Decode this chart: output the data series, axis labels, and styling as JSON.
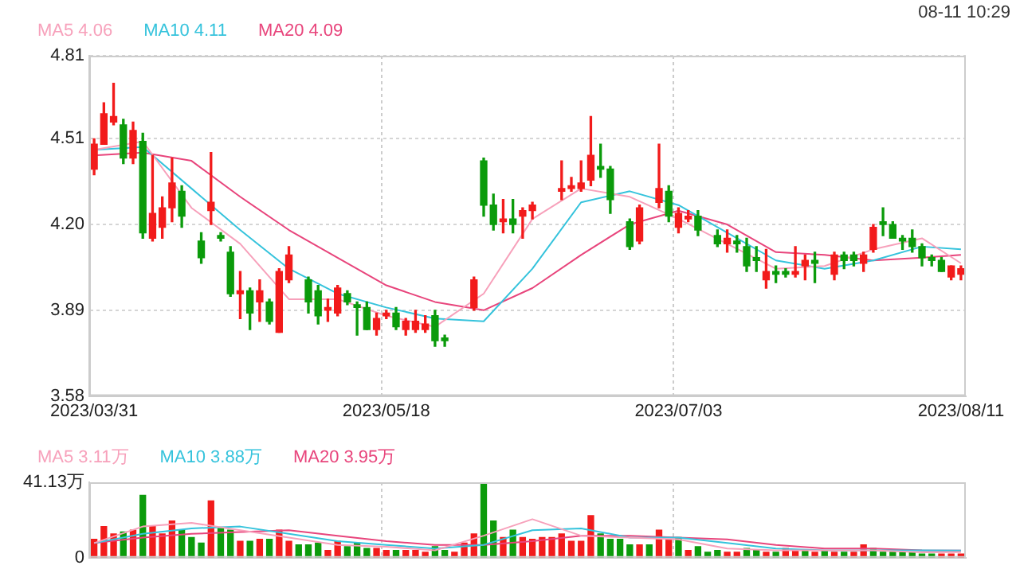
{
  "chart_data": [
    {
      "type": "candlestick",
      "categories": [
        "2023/03/31",
        null,
        null,
        null,
        null,
        null,
        null,
        null,
        null,
        null,
        null,
        null,
        null,
        null,
        null,
        null,
        null,
        null,
        null,
        null,
        null,
        null,
        null,
        null,
        null,
        null,
        null,
        null,
        null,
        null,
        "2023/05/18",
        null,
        null,
        null,
        null,
        null,
        null,
        null,
        null,
        null,
        null,
        null,
        null,
        null,
        null,
        null,
        null,
        null,
        null,
        null,
        null,
        null,
        null,
        null,
        null,
        null,
        null,
        null,
        null,
        null,
        "2023/07/03",
        null,
        null,
        null,
        null,
        null,
        null,
        null,
        null,
        null,
        null,
        null,
        null,
        null,
        null,
        null,
        null,
        null,
        null,
        null,
        null,
        null,
        null,
        null,
        null,
        null,
        null,
        null,
        null,
        "2023/08/11"
      ],
      "ohlc": [
        [
          4.4,
          4.51,
          4.38,
          4.49
        ],
        [
          4.49,
          4.64,
          4.49,
          4.6
        ],
        [
          4.57,
          4.71,
          4.56,
          4.59
        ],
        [
          4.56,
          4.58,
          4.42,
          4.44
        ],
        [
          4.44,
          4.57,
          4.42,
          4.54
        ],
        [
          4.5,
          4.53,
          4.15,
          4.17
        ],
        [
          4.15,
          4.45,
          4.14,
          4.24
        ],
        [
          4.19,
          4.3,
          4.15,
          4.26
        ],
        [
          4.26,
          4.44,
          4.21,
          4.35
        ],
        [
          4.32,
          4.34,
          4.19,
          4.23
        ],
        null,
        [
          4.14,
          4.17,
          4.06,
          4.08
        ],
        [
          4.25,
          4.46,
          4.2,
          4.28
        ],
        [
          4.16,
          4.17,
          4.14,
          4.15
        ],
        [
          4.1,
          4.12,
          3.94,
          3.95
        ],
        [
          3.95,
          4.03,
          3.86,
          3.96
        ],
        [
          3.96,
          3.97,
          3.82,
          3.88
        ],
        [
          3.92,
          4.0,
          3.85,
          3.96
        ],
        [
          3.92,
          3.93,
          3.84,
          3.85
        ],
        [
          3.81,
          4.04,
          3.81,
          4.03
        ],
        [
          4.0,
          4.12,
          3.99,
          4.09
        ],
        null,
        [
          4.0,
          4.01,
          3.88,
          3.92
        ],
        [
          3.96,
          3.98,
          3.84,
          3.87
        ],
        [
          3.89,
          3.93,
          3.85,
          3.9
        ],
        [
          3.88,
          3.98,
          3.87,
          3.97
        ],
        [
          3.95,
          3.96,
          3.91,
          3.92
        ],
        [
          3.91,
          3.92,
          3.8,
          3.9
        ],
        [
          3.9,
          3.92,
          3.82,
          3.82
        ],
        [
          3.82,
          3.88,
          3.8,
          3.86
        ],
        [
          3.87,
          3.89,
          3.86,
          3.88
        ],
        [
          3.88,
          3.9,
          3.82,
          3.83
        ],
        [
          3.82,
          3.86,
          3.8,
          3.85
        ],
        [
          3.82,
          3.89,
          3.81,
          3.85
        ],
        [
          3.82,
          3.87,
          3.81,
          3.84
        ],
        [
          3.87,
          3.89,
          3.76,
          3.78
        ],
        [
          3.79,
          3.8,
          3.76,
          3.78
        ],
        null,
        null,
        [
          3.9,
          4.01,
          3.89,
          4.0
        ],
        [
          4.43,
          4.44,
          4.23,
          4.27
        ],
        [
          4.27,
          4.31,
          4.18,
          4.2
        ],
        [
          4.21,
          4.29,
          4.17,
          4.22
        ],
        [
          4.22,
          4.29,
          4.17,
          4.2
        ],
        [
          4.23,
          4.26,
          4.15,
          4.25
        ],
        [
          4.25,
          4.28,
          4.22,
          4.27
        ],
        null,
        null,
        [
          4.32,
          4.43,
          4.29,
          4.33
        ],
        [
          4.33,
          4.37,
          4.32,
          4.34
        ],
        [
          4.33,
          4.43,
          4.32,
          4.35
        ],
        [
          4.36,
          4.59,
          4.34,
          4.45
        ],
        [
          4.41,
          4.49,
          4.37,
          4.4
        ],
        [
          4.4,
          4.41,
          4.24,
          4.29
        ],
        null,
        [
          4.21,
          4.22,
          4.11,
          4.12
        ],
        [
          4.14,
          4.27,
          4.13,
          4.26
        ],
        null,
        [
          4.28,
          4.49,
          4.26,
          4.33
        ],
        [
          4.32,
          4.34,
          4.21,
          4.23
        ],
        [
          4.19,
          4.26,
          4.17,
          4.24
        ],
        [
          4.22,
          4.25,
          4.21,
          4.23
        ],
        [
          4.23,
          4.25,
          4.16,
          4.18
        ],
        null,
        [
          4.16,
          4.18,
          4.12,
          4.13
        ],
        [
          4.13,
          4.18,
          4.1,
          4.15
        ],
        [
          4.14,
          4.16,
          4.1,
          4.13
        ],
        [
          4.12,
          4.15,
          4.03,
          4.05
        ],
        [
          4.08,
          4.12,
          4.03,
          4.07
        ],
        [
          4.0,
          4.11,
          3.97,
          4.03
        ],
        [
          4.03,
          4.05,
          3.99,
          4.02
        ],
        [
          4.03,
          4.04,
          4.01,
          4.02
        ],
        [
          4.02,
          4.12,
          4.01,
          4.03
        ],
        [
          4.05,
          4.09,
          4.0,
          4.07
        ],
        [
          4.07,
          4.1,
          3.99,
          4.06
        ],
        null,
        [
          4.02,
          4.1,
          4.0,
          4.09
        ],
        [
          4.09,
          4.1,
          4.04,
          4.07
        ],
        [
          4.09,
          4.1,
          4.05,
          4.07
        ],
        [
          4.06,
          4.1,
          4.03,
          4.09
        ],
        [
          4.11,
          4.2,
          4.1,
          4.19
        ],
        [
          4.21,
          4.26,
          4.16,
          4.2
        ],
        [
          4.2,
          4.21,
          4.15,
          4.15
        ],
        [
          4.15,
          4.16,
          4.11,
          4.14
        ],
        [
          4.15,
          4.18,
          4.1,
          4.12
        ],
        [
          4.12,
          4.13,
          4.05,
          4.08
        ],
        [
          4.08,
          4.09,
          4.05,
          4.07
        ],
        [
          4.07,
          4.08,
          4.03,
          4.03
        ],
        [
          4.01,
          4.05,
          4.0,
          4.05
        ],
        [
          4.02,
          4.05,
          4.0,
          4.04
        ]
      ],
      "colors": [
        "#f21b1b",
        "#f21b1b",
        "#f21b1b",
        "#0b9b0b",
        "#f21b1b",
        "#0b9b0b",
        "#f21b1b",
        "#f21b1b",
        "#f21b1b",
        "#0b9b0b",
        null,
        "#0b9b0b",
        "#f21b1b",
        "#0b9b0b",
        "#0b9b0b",
        "#f21b1b",
        "#0b9b0b",
        "#f21b1b",
        "#0b9b0b",
        "#f21b1b",
        "#f21b1b",
        null,
        "#0b9b0b",
        "#0b9b0b",
        "#f21b1b",
        "#f21b1b",
        "#0b9b0b",
        "#0b9b0b",
        "#0b9b0b",
        "#f21b1b",
        "#f21b1b",
        "#0b9b0b",
        "#f21b1b",
        "#f21b1b",
        "#f21b1b",
        "#0b9b0b",
        "#0b9b0b",
        null,
        null,
        "#f21b1b",
        "#0b9b0b",
        "#0b9b0b",
        "#f21b1b",
        "#0b9b0b",
        "#f21b1b",
        "#f21b1b",
        null,
        null,
        "#f21b1b",
        "#f21b1b",
        "#f21b1b",
        "#f21b1b",
        "#0b9b0b",
        "#0b9b0b",
        null,
        "#0b9b0b",
        "#f21b1b",
        null,
        "#f21b1b",
        "#0b9b0b",
        "#f21b1b",
        "#f21b1b",
        "#0b9b0b",
        null,
        "#0b9b0b",
        "#f21b1b",
        "#0b9b0b",
        "#0b9b0b",
        "#0b9b0b",
        "#f21b1b",
        "#0b9b0b",
        "#0b9b0b",
        "#f21b1b",
        "#f21b1b",
        "#0b9b0b",
        null,
        "#f21b1b",
        "#0b9b0b",
        "#0b9b0b",
        "#f21b1b",
        "#f21b1b",
        "#0b9b0b",
        "#0b9b0b",
        "#0b9b0b",
        "#0b9b0b",
        "#0b9b0b",
        "#0b9b0b",
        "#0b9b0b",
        "#f21b1b",
        "#f21b1b"
      ],
      "series": [
        {
          "type": "line",
          "name": "MA5 4.06",
          "color": "#f7a1bb",
          "values": [
            4.47,
            null,
            null,
            null,
            null,
            4.5,
            null,
            null,
            null,
            null,
            4.26,
            null,
            null,
            null,
            null,
            4.13,
            null,
            null,
            null,
            null,
            3.93,
            null,
            null,
            null,
            null,
            3.93,
            null,
            null,
            null,
            null,
            3.87,
            null,
            null,
            null,
            null,
            3.83,
            null,
            null,
            null,
            null,
            3.95,
            null,
            null,
            null,
            null,
            4.22,
            null,
            null,
            null,
            null,
            4.33,
            null,
            null,
            null,
            null,
            4.3,
            null,
            null,
            null,
            null,
            4.22,
            null,
            null,
            null,
            null,
            4.13,
            null,
            null,
            null,
            null,
            4.04,
            null,
            null,
            null,
            null,
            4.05,
            null,
            null,
            null,
            null,
            4.11,
            null,
            null,
            null,
            null,
            4.15,
            null,
            null,
            null,
            4.06
          ]
        },
        {
          "type": "line",
          "name": "MA10 4.11",
          "color": "#35c3dc",
          "values": [
            4.47,
            null,
            null,
            null,
            null,
            4.48,
            null,
            null,
            null,
            null,
            4.33,
            null,
            null,
            null,
            null,
            4.18,
            null,
            null,
            null,
            null,
            4.04,
            null,
            null,
            null,
            null,
            3.95,
            null,
            null,
            null,
            null,
            3.9,
            null,
            null,
            null,
            null,
            3.86,
            null,
            null,
            null,
            null,
            3.85,
            null,
            null,
            null,
            null,
            4.04,
            null,
            null,
            null,
            null,
            4.28,
            null,
            null,
            null,
            null,
            4.32,
            null,
            null,
            null,
            null,
            4.27,
            null,
            null,
            null,
            null,
            4.17,
            null,
            null,
            null,
            null,
            4.07,
            null,
            null,
            null,
            null,
            4.04,
            null,
            null,
            null,
            null,
            4.07,
            null,
            null,
            null,
            null,
            4.12,
            null,
            null,
            null,
            4.11
          ]
        },
        {
          "type": "line",
          "name": "MA20 4.09",
          "color": "#e8457c",
          "values": [
            4.45,
            null,
            null,
            null,
            null,
            4.46,
            null,
            null,
            null,
            null,
            4.43,
            null,
            null,
            null,
            null,
            4.3,
            null,
            null,
            null,
            null,
            4.18,
            null,
            null,
            null,
            null,
            4.08,
            null,
            null,
            null,
            null,
            3.98,
            null,
            null,
            null,
            null,
            3.92,
            null,
            null,
            null,
            null,
            3.89,
            null,
            null,
            null,
            null,
            3.97,
            null,
            null,
            null,
            null,
            4.09,
            null,
            null,
            null,
            null,
            4.2,
            null,
            null,
            null,
            null,
            4.25,
            null,
            null,
            null,
            null,
            4.2,
            null,
            null,
            null,
            null,
            4.1,
            null,
            null,
            null,
            null,
            4.09,
            null,
            null,
            null,
            null,
            4.07,
            null,
            null,
            null,
            null,
            4.08,
            null,
            null,
            null,
            4.09
          ]
        }
      ],
      "ylim": [
        3.58,
        4.81
      ],
      "yticks": [
        3.58,
        3.89,
        {
          "value": 4.2,
          "label": "4.20"
        },
        4.51,
        4.81
      ],
      "grid": true,
      "legend": "top left",
      "annotations": [
        "08-11 10:29"
      ]
    },
    {
      "type": "bar",
      "categories": [
        "2023/03/31",
        null,
        null,
        null,
        null,
        null,
        null,
        null,
        null,
        null,
        null,
        null,
        null,
        null,
        null,
        null,
        null,
        null,
        null,
        null,
        null,
        null,
        null,
        null,
        null,
        null,
        null,
        null,
        null,
        null,
        "2023/05/18",
        null,
        null,
        null,
        null,
        null,
        null,
        null,
        null,
        null,
        null,
        null,
        null,
        null,
        null,
        null,
        null,
        null,
        null,
        null,
        null,
        null,
        null,
        null,
        null,
        null,
        null,
        null,
        null,
        null,
        "2023/07/03",
        null,
        null,
        null,
        null,
        null,
        null,
        null,
        null,
        null,
        null,
        null,
        null,
        null,
        null,
        null,
        null,
        null,
        null,
        null,
        null,
        null,
        null,
        null,
        null,
        null,
        null,
        null,
        null,
        "2023/08/11"
      ],
      "values": [
        10,
        17,
        13,
        14,
        15,
        34,
        17,
        13,
        20,
        15,
        11,
        8,
        31,
        16,
        15,
        9,
        9,
        10,
        10,
        15,
        9,
        7,
        7,
        8,
        4,
        9,
        6,
        8,
        5,
        5,
        4,
        4,
        4,
        4,
        3,
        6,
        4,
        3,
        8,
        13,
        41.13,
        20,
        11,
        15,
        11,
        10,
        11,
        11,
        13,
        9,
        9,
        23,
        13,
        10,
        10,
        7,
        7,
        7,
        15,
        10,
        11,
        4,
        6,
        3,
        4,
        3,
        3,
        5,
        4,
        3,
        3,
        5,
        4,
        4,
        3,
        4,
        3,
        3,
        3,
        7,
        5,
        3,
        3,
        3,
        3,
        2,
        2,
        2,
        2,
        2
      ],
      "colors": [
        "#f21b1b",
        "#f21b1b",
        "#f21b1b",
        "#0b9b0b",
        "#f21b1b",
        "#0b9b0b",
        "#f21b1b",
        "#f21b1b",
        "#f21b1b",
        "#0b9b0b",
        "#0b9b0b",
        "#0b9b0b",
        "#f21b1b",
        "#0b9b0b",
        "#0b9b0b",
        "#f21b1b",
        "#0b9b0b",
        "#f21b1b",
        "#0b9b0b",
        "#f21b1b",
        "#f21b1b",
        "#0b9b0b",
        "#0b9b0b",
        "#0b9b0b",
        "#f21b1b",
        "#f21b1b",
        "#0b9b0b",
        "#0b9b0b",
        "#0b9b0b",
        "#f21b1b",
        "#f21b1b",
        "#0b9b0b",
        "#f21b1b",
        "#f21b1b",
        "#f21b1b",
        "#0b9b0b",
        "#0b9b0b",
        "#f21b1b",
        "#f21b1b",
        "#f21b1b",
        "#0b9b0b",
        "#0b9b0b",
        "#f21b1b",
        "#0b9b0b",
        "#f21b1b",
        "#f21b1b",
        "#f21b1b",
        "#f21b1b",
        "#f21b1b",
        "#f21b1b",
        "#f21b1b",
        "#f21b1b",
        "#0b9b0b",
        "#0b9b0b",
        "#0b9b0b",
        "#0b9b0b",
        "#f21b1b",
        "#0b9b0b",
        "#f21b1b",
        "#f21b1b",
        "#0b9b0b",
        "#f21b1b",
        "#0b9b0b",
        "#0b9b0b",
        "#0b9b0b",
        "#f21b1b",
        "#f21b1b",
        "#0b9b0b",
        "#0b9b0b",
        "#f21b1b",
        "#0b9b0b",
        "#f21b1b",
        "#f21b1b",
        "#0b9b0b",
        "#f21b1b",
        "#0b9b0b",
        "#f21b1b",
        "#0b9b0b",
        "#f21b1b",
        "#f21b1b",
        "#0b9b0b",
        "#0b9b0b",
        "#0b9b0b",
        "#0b9b0b",
        "#0b9b0b",
        "#0b9b0b",
        "#0b9b0b",
        "#f21b1b",
        "#f21b1b",
        "#f21b1b"
      ],
      "series": [
        {
          "type": "line",
          "name": "MA5 3.11万",
          "color": "#f7a1bb",
          "values": [
            8,
            null,
            null,
            null,
            null,
            17,
            null,
            null,
            null,
            null,
            19,
            null,
            null,
            null,
            null,
            15,
            null,
            null,
            null,
            null,
            11,
            null,
            null,
            null,
            null,
            7,
            null,
            null,
            null,
            null,
            6,
            null,
            null,
            null,
            null,
            4,
            null,
            null,
            null,
            null,
            12,
            null,
            null,
            null,
            null,
            21,
            null,
            null,
            null,
            null,
            12,
            null,
            null,
            null,
            null,
            11,
            null,
            null,
            null,
            null,
            10,
            null,
            null,
            null,
            null,
            5,
            null,
            null,
            null,
            null,
            4,
            null,
            null,
            null,
            null,
            4,
            null,
            null,
            null,
            null,
            4,
            null,
            null,
            null,
            null,
            3,
            null,
            null,
            null,
            3.11
          ]
        },
        {
          "type": "line",
          "name": "MA10 3.88万",
          "color": "#35c3dc",
          "values": [
            8,
            null,
            null,
            null,
            null,
            13,
            null,
            null,
            null,
            null,
            16,
            null,
            null,
            null,
            null,
            17,
            null,
            null,
            null,
            null,
            13,
            null,
            null,
            null,
            null,
            9,
            null,
            null,
            null,
            null,
            7,
            null,
            null,
            null,
            null,
            5,
            null,
            null,
            null,
            null,
            7,
            null,
            null,
            null,
            null,
            15,
            null,
            null,
            null,
            null,
            16,
            null,
            null,
            null,
            null,
            11,
            null,
            null,
            null,
            null,
            11,
            null,
            null,
            null,
            null,
            8,
            null,
            null,
            null,
            null,
            5,
            null,
            null,
            null,
            null,
            4,
            null,
            null,
            null,
            null,
            4,
            null,
            null,
            null,
            null,
            4,
            null,
            null,
            null,
            3.88
          ]
        },
        {
          "type": "line",
          "name": "MA20 3.95万",
          "color": "#e8457c",
          "values": [
            8,
            null,
            null,
            null,
            null,
            11,
            null,
            null,
            null,
            null,
            13,
            null,
            null,
            null,
            null,
            14,
            null,
            null,
            null,
            null,
            15,
            null,
            null,
            null,
            null,
            12,
            null,
            null,
            null,
            null,
            9,
            null,
            null,
            null,
            null,
            7,
            null,
            null,
            null,
            null,
            7,
            null,
            null,
            null,
            null,
            9,
            null,
            null,
            null,
            null,
            12,
            null,
            null,
            null,
            null,
            12,
            null,
            null,
            null,
            null,
            11,
            null,
            null,
            null,
            null,
            10,
            null,
            null,
            null,
            null,
            7,
            null,
            null,
            null,
            null,
            5,
            null,
            null,
            null,
            null,
            5,
            null,
            null,
            null,
            null,
            4,
            null,
            null,
            null,
            3.95
          ]
        }
      ],
      "ylim": [
        0,
        41.13
      ],
      "yticks": [
        0,
        {
          "value": 41.13,
          "label": "41.13万"
        }
      ],
      "grid": "x",
      "legend": "top left",
      "tick_labels": "y"
    }
  ]
}
